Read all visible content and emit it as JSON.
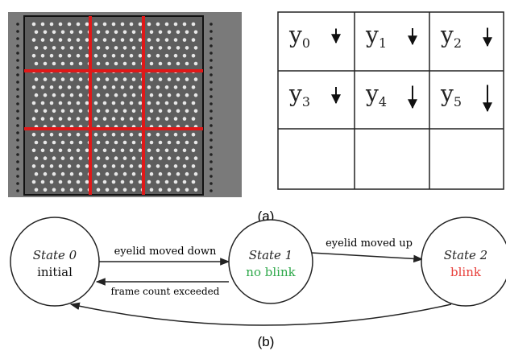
{
  "table": {
    "rows": [
      [
        {
          "base": "y",
          "sub": "0"
        },
        {
          "base": "y",
          "sub": "1"
        },
        {
          "base": "y",
          "sub": "2"
        }
      ],
      [
        {
          "base": "y",
          "sub": "3"
        },
        {
          "base": "y",
          "sub": "4"
        },
        {
          "base": "y",
          "sub": "5"
        }
      ]
    ]
  },
  "captions": [
    "(a)",
    "(b)"
  ],
  "states": [
    {
      "name": "State 0",
      "label": "initial",
      "color": "#111111"
    },
    {
      "name": "State 1",
      "label": "no blink",
      "color": "#2ea84a"
    },
    {
      "name": "State 2",
      "label": "blink",
      "color": "#e8413c"
    }
  ],
  "transitions": [
    "eyelid moved down",
    "frame count exceeded",
    "eyelid moved up"
  ]
}
